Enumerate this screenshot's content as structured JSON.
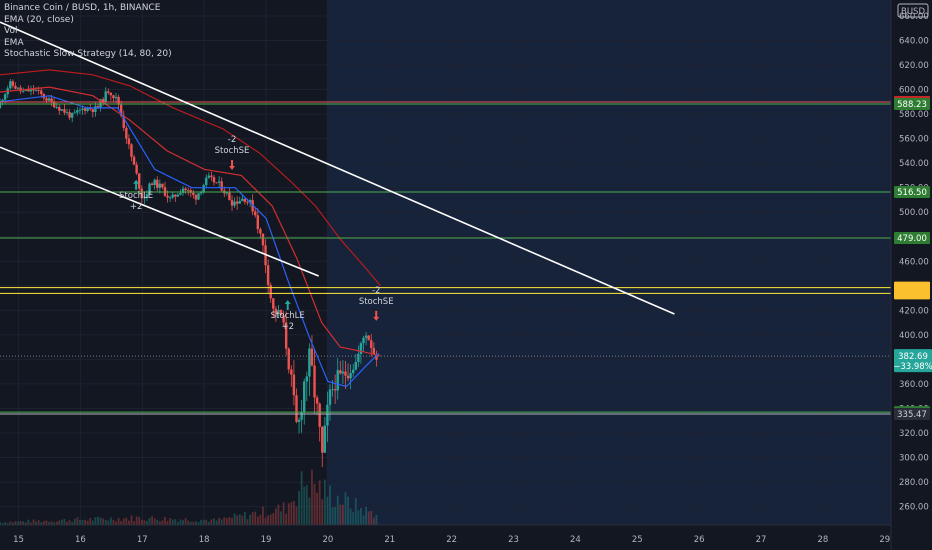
{
  "legend": {
    "line1": "Binance Coin / BUSD, 1h, BINANCE",
    "line2": "EMA (20, close)",
    "line3": "Vol",
    "line4": "EMA",
    "line5": "Stochastic Slow Strategy (14, 80, 20)"
  },
  "currency_badge": "BUSD",
  "colors": {
    "background": "#131722",
    "up": "#26a69a",
    "down": "#ef5350",
    "ema20": "#2962ff",
    "ema_red": "#d32f2f",
    "trendline": "#ffffff",
    "hline_green": "#4caf50",
    "hline_red": "#ef5350",
    "hline_yellow": "#ffeb3b",
    "future_zone": "#16233a"
  },
  "chart_data": {
    "type": "candlestick",
    "x_axis": {
      "labels": [
        "15",
        "16",
        "17",
        "18",
        "19",
        "20",
        "21",
        "22",
        "23",
        "24",
        "25",
        "26",
        "27",
        "28",
        "29"
      ],
      "unit": "day",
      "range": [
        14.7,
        29.1
      ]
    },
    "y_axis": {
      "ticks": [
        260,
        280,
        300,
        320,
        340,
        360,
        380,
        400,
        420,
        440,
        460,
        480,
        500,
        520,
        540,
        560,
        580,
        600,
        620,
        640,
        660
      ],
      "tick_labels": [
        "260.00",
        "280.00",
        "300.00",
        "320.00",
        "340.00",
        "360.00",
        "380.00",
        "400.00",
        "420.00",
        "440.00",
        "460.00",
        "480.00",
        "500.00",
        "520.00",
        "540.00",
        "560.00",
        "580.00",
        "600.00",
        "620.00",
        "640.00",
        "660.00"
      ],
      "range": [
        245,
        673
      ]
    },
    "price_path": [
      [
        14.7,
        585
      ],
      [
        14.9,
        605
      ],
      [
        15.1,
        598
      ],
      [
        15.3,
        600
      ],
      [
        15.5,
        592
      ],
      [
        15.7,
        585
      ],
      [
        15.9,
        578
      ],
      [
        16.1,
        585
      ],
      [
        16.3,
        584
      ],
      [
        16.5,
        600
      ],
      [
        16.65,
        590
      ],
      [
        16.85,
        548
      ],
      [
        16.95,
        530
      ],
      [
        17.05,
        510
      ],
      [
        17.2,
        525
      ],
      [
        17.35,
        520
      ],
      [
        17.5,
        510
      ],
      [
        17.7,
        520
      ],
      [
        17.9,
        512
      ],
      [
        18.1,
        528
      ],
      [
        18.3,
        522
      ],
      [
        18.5,
        508
      ],
      [
        18.7,
        512
      ],
      [
        18.85,
        502
      ],
      [
        19.0,
        470
      ],
      [
        19.15,
        420
      ],
      [
        19.3,
        415
      ],
      [
        19.45,
        362
      ],
      [
        19.55,
        318
      ],
      [
        19.65,
        360
      ],
      [
        19.75,
        380
      ],
      [
        19.85,
        345
      ],
      [
        19.95,
        300
      ],
      [
        20.05,
        345
      ],
      [
        20.15,
        362
      ],
      [
        20.25,
        365
      ],
      [
        20.35,
        370
      ],
      [
        20.5,
        378
      ],
      [
        20.65,
        403
      ],
      [
        20.72,
        395
      ],
      [
        20.8,
        383
      ]
    ],
    "ema20": [
      [
        14.7,
        590
      ],
      [
        15.5,
        595
      ],
      [
        16.1,
        585
      ],
      [
        16.6,
        585
      ],
      [
        17.2,
        535
      ],
      [
        17.8,
        520
      ],
      [
        18.5,
        520
      ],
      [
        19.0,
        495
      ],
      [
        19.35,
        445
      ],
      [
        19.7,
        398
      ],
      [
        20.0,
        362
      ],
      [
        20.3,
        358
      ],
      [
        20.6,
        374
      ],
      [
        20.82,
        385
      ]
    ],
    "ema_red": [
      [
        14.7,
        598
      ],
      [
        15.5,
        602
      ],
      [
        16.2,
        595
      ],
      [
        16.8,
        575
      ],
      [
        17.4,
        550
      ],
      [
        18.0,
        535
      ],
      [
        18.6,
        530
      ],
      [
        19.1,
        505
      ],
      [
        19.5,
        462
      ],
      [
        19.9,
        410
      ],
      [
        20.2,
        390
      ],
      [
        20.5,
        387
      ],
      [
        20.85,
        383
      ]
    ],
    "ema_slow": [
      [
        14.7,
        612
      ],
      [
        15.5,
        616
      ],
      [
        16.2,
        612
      ],
      [
        16.8,
        603
      ],
      [
        17.5,
        585
      ],
      [
        18.3,
        568
      ],
      [
        18.9,
        548
      ],
      [
        19.4,
        525
      ],
      [
        19.8,
        505
      ],
      [
        20.2,
        478
      ],
      [
        20.6,
        455
      ],
      [
        20.85,
        440
      ]
    ],
    "volume_path": [
      [
        14.7,
        0.06
      ],
      [
        16.9,
        0.15
      ],
      [
        18.2,
        0.1
      ],
      [
        19.3,
        0.35
      ],
      [
        19.65,
        0.95
      ],
      [
        19.95,
        0.7
      ],
      [
        20.6,
        0.3
      ],
      [
        20.85,
        0.22
      ]
    ],
    "horizontal_levels": [
      {
        "price": 589.81,
        "label": "589.81",
        "type": "red"
      },
      {
        "price": 588.23,
        "label": "588.23",
        "type": "green"
      },
      {
        "price": 516.5,
        "label": "516.50",
        "type": "green"
      },
      {
        "price": 479.0,
        "label": "479.00",
        "type": "green"
      },
      {
        "price": 438.5,
        "label": "",
        "type": "yellow"
      },
      {
        "price": 433.8,
        "label": "",
        "type": "yellow"
      },
      {
        "price": 336.99,
        "label": "336.99",
        "type": "green"
      },
      {
        "price": 335.47,
        "label": "335.47",
        "type": "white"
      }
    ],
    "current_price": {
      "price": 382.69,
      "label": "382.69",
      "change": "−33.98%"
    },
    "trendlines": [
      {
        "from": [
          14.7,
          655
        ],
        "to": [
          25.6,
          417
        ]
      },
      {
        "from": [
          14.7,
          553
        ],
        "to": [
          19.85,
          448
        ]
      }
    ],
    "signals": [
      {
        "x": 16.9,
        "y": 515,
        "dir": "up",
        "name": "StochLE",
        "qty": "+2"
      },
      {
        "x": 18.45,
        "y": 536,
        "dir": "down",
        "name": "StochSE",
        "qty": "-2"
      },
      {
        "x": 19.35,
        "y": 417,
        "dir": "up",
        "name": "StochLE",
        "qty": "+2"
      },
      {
        "x": 20.78,
        "y": 413,
        "dir": "down",
        "name": "StochSE",
        "qty": "-2"
      }
    ]
  }
}
